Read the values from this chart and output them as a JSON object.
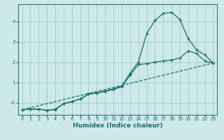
{
  "xlabel": "Humidex (Indice chaleur)",
  "background_color": "#cce8e8",
  "grid_color": "#aacccc",
  "line_color": "#1a6b6b",
  "x_ticks": [
    0,
    1,
    2,
    3,
    4,
    5,
    6,
    7,
    8,
    9,
    10,
    11,
    12,
    13,
    14,
    15,
    16,
    17,
    18,
    19,
    20,
    21,
    22,
    23
  ],
  "y_ticks": [
    0,
    1,
    2,
    3,
    4
  ],
  "y_tick_labels": [
    "-0",
    "1",
    "2",
    "3",
    "4"
  ],
  "ylim": [
    -0.6,
    4.85
  ],
  "xlim": [
    -0.5,
    23.5
  ],
  "line1_x": [
    0,
    1,
    2,
    3,
    4,
    5,
    6,
    7,
    8,
    9,
    10,
    11,
    12,
    13,
    14,
    15,
    16,
    17,
    18,
    19,
    20,
    21,
    22,
    23
  ],
  "line1_y": [
    -0.35,
    -0.32,
    -0.32,
    -0.38,
    -0.35,
    -0.05,
    0.05,
    0.18,
    0.42,
    0.48,
    0.58,
    0.68,
    0.82,
    1.45,
    2.0,
    3.4,
    4.05,
    4.4,
    4.45,
    4.1,
    3.15,
    2.6,
    2.35,
    1.95
  ],
  "line2_x": [
    0,
    1,
    2,
    3,
    4,
    5,
    6,
    7,
    8,
    9,
    10,
    11,
    12,
    13,
    14,
    15,
    16,
    17,
    18,
    19,
    20,
    21,
    22,
    23
  ],
  "line2_y": [
    -0.35,
    -0.32,
    -0.32,
    -0.38,
    -0.32,
    -0.05,
    0.05,
    0.18,
    0.42,
    0.48,
    0.55,
    0.65,
    0.78,
    1.35,
    1.88,
    1.92,
    2.0,
    2.05,
    2.1,
    2.2,
    2.55,
    2.42,
    2.05,
    1.95
  ],
  "line3_x": [
    0,
    23
  ],
  "line3_y": [
    -0.35,
    1.95
  ]
}
